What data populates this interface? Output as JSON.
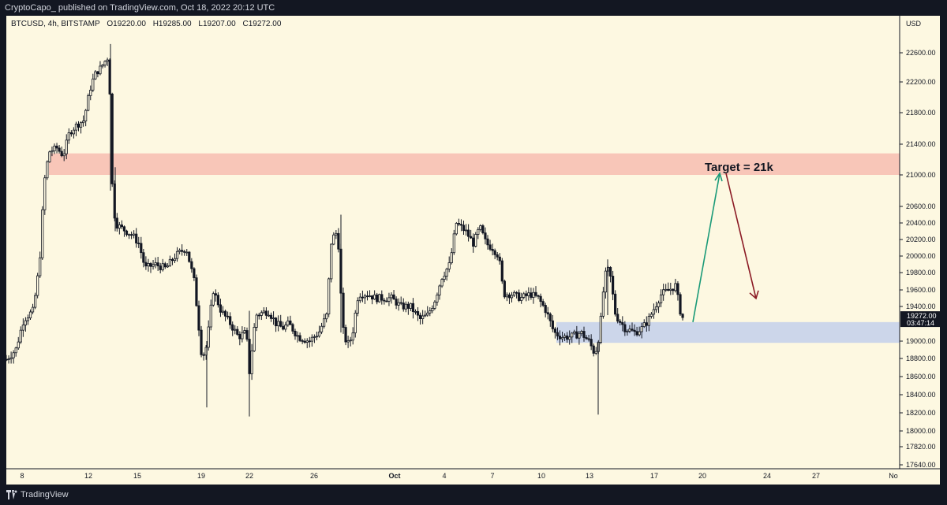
{
  "header": {
    "publisher": "CryptoCapo_ published on TradingView.com, Oct 18, 2022 20:12 UTC"
  },
  "symbol_line": {
    "symbol": "BTCUSD, 4h, BITSTAMP",
    "open": "O19220.00",
    "high": "H19285.00",
    "low": "L19207.00",
    "close": "C19272.00"
  },
  "footer": {
    "brand": "TradingView"
  },
  "colors": {
    "background": "#fdf8e1",
    "candle": "#131722",
    "resistance_zone": "#f8c6b8",
    "support_zone": "#ccd6ea",
    "up_arrow": "#1a9a78",
    "down_arrow": "#8b1a24",
    "price_label_bg": "#131722"
  },
  "chart_data": {
    "type": "candlestick",
    "title": "BTCUSD, 4h, BITSTAMP",
    "currency": "USD",
    "y_ticks": [
      "22600.00",
      "22200.00",
      "21800.00",
      "21400.00",
      "21000.00",
      "20600.00",
      "20400.00",
      "20200.00",
      "20000.00",
      "19800.00",
      "19600.00",
      "19400.00",
      "19000.00",
      "18800.00",
      "18600.00",
      "18400.00",
      "18200.00",
      "18000.00",
      "17820.00",
      "17640.00"
    ],
    "x_ticks": [
      "8",
      "12",
      "15",
      "19",
      "22",
      "26",
      "Oct",
      "4",
      "7",
      "10",
      "13",
      "17",
      "20",
      "24",
      "27",
      "No"
    ],
    "last_price": "19272.00",
    "countdown": "03:47:14",
    "resistance_zone": [
      21000,
      21280
    ],
    "support_zone": [
      18980,
      19220
    ],
    "annotation": "Target = 21k",
    "target_price": 21000,
    "projection": {
      "start_price": 19220,
      "peak_price": 21000,
      "end_price": 19440
    },
    "range": {
      "high": 22720,
      "low": 18160
    }
  }
}
